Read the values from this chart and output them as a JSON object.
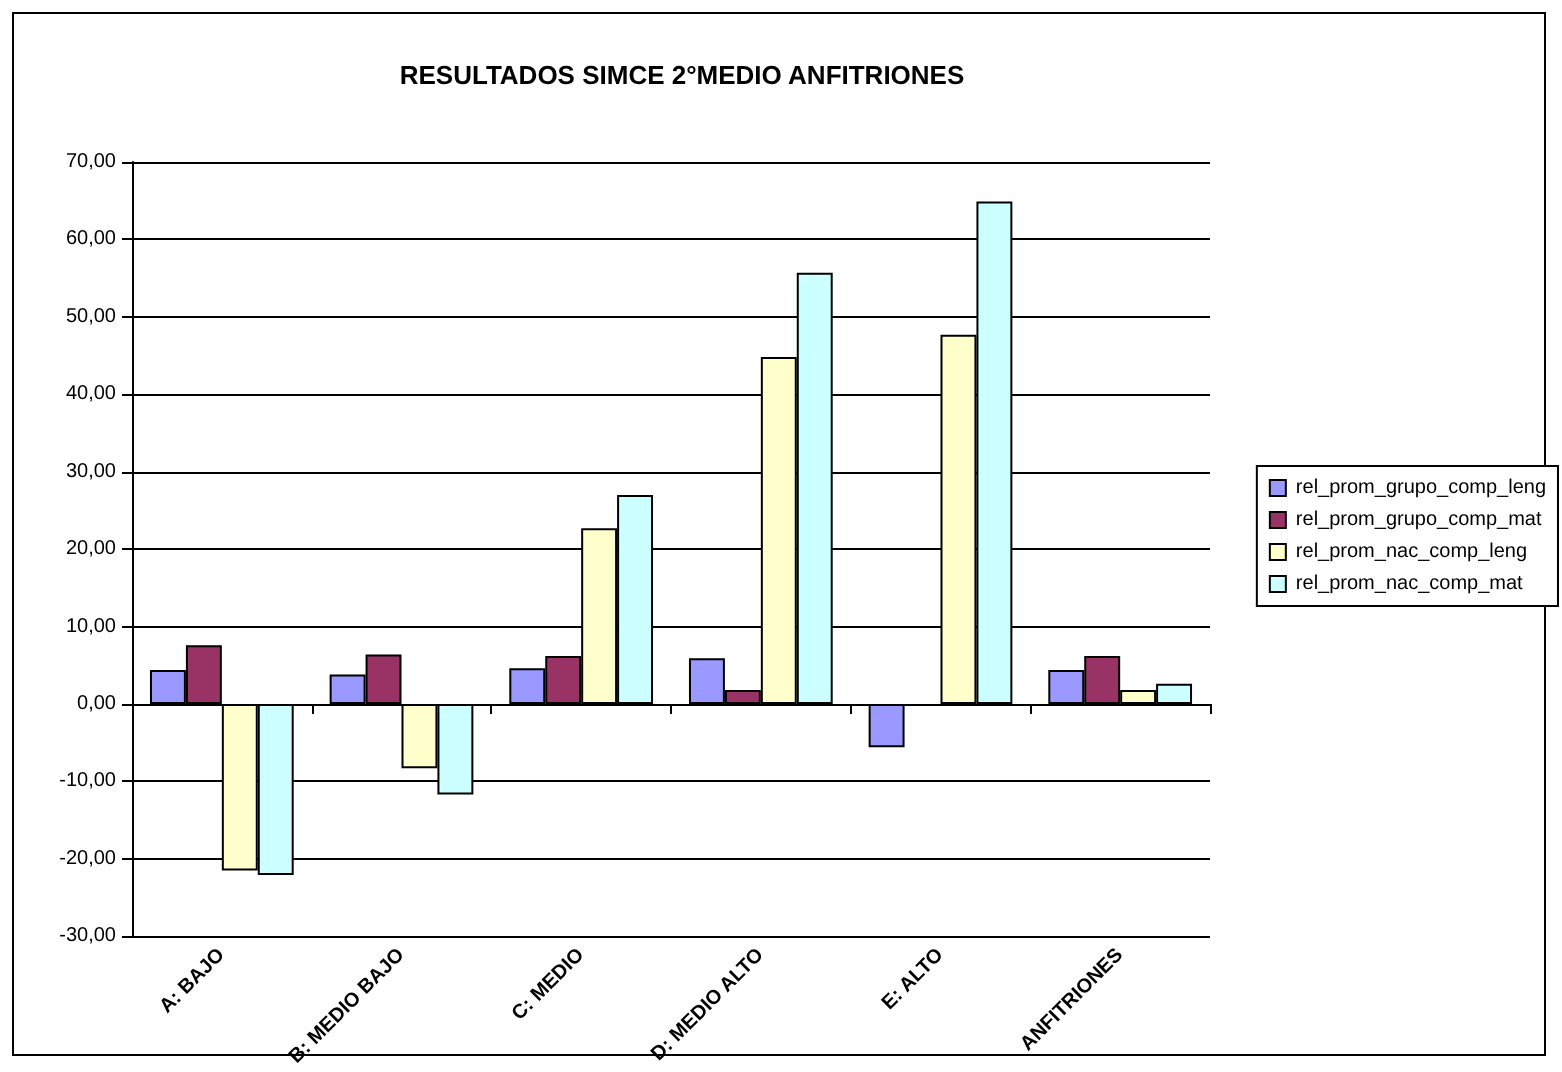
{
  "chart_data": {
    "type": "bar",
    "title": "RESULTADOS SIMCE 2°MEDIO ANFITRIONES",
    "categories": [
      "A: BAJO",
      "B: MEDIO BAJO",
      "C: MEDIO",
      "D: MEDIO ALTO",
      "E: ALTO",
      "ANFITRIONES"
    ],
    "series": [
      {
        "name": "rel_prom_grupo_comp_leng",
        "color": "#9999ff",
        "values": [
          4.4,
          3.8,
          4.6,
          5.9,
          -5.6,
          4.4
        ]
      },
      {
        "name": "rel_prom_grupo_comp_mat",
        "color": "#993366",
        "values": [
          7.6,
          6.4,
          6.2,
          1.8,
          null,
          6.2
        ]
      },
      {
        "name": "rel_prom_nac_comp_leng",
        "color": "#ffffcc",
        "values": [
          -21.5,
          -8.3,
          22.7,
          44.8,
          47.7,
          1.8
        ]
      },
      {
        "name": "rel_prom_nac_comp_mat",
        "color": "#ccffff",
        "values": [
          -22.1,
          -11.7,
          27.0,
          55.7,
          64.9,
          2.6
        ]
      }
    ],
    "ylim": [
      -30,
      70
    ],
    "yticks": [
      {
        "value": -30,
        "label": "-30,00"
      },
      {
        "value": -20,
        "label": "-20,00"
      },
      {
        "value": -10,
        "label": "-10,00"
      },
      {
        "value": 0,
        "label": "0,00"
      },
      {
        "value": 10,
        "label": "10,00"
      },
      {
        "value": 20,
        "label": "20,00"
      },
      {
        "value": 30,
        "label": "30,00"
      },
      {
        "value": 40,
        "label": "40,00"
      },
      {
        "value": 50,
        "label": "50,00"
      },
      {
        "value": 60,
        "label": "60,00"
      },
      {
        "value": 70,
        "label": "70,00"
      }
    ],
    "grid": "y",
    "legend": "right"
  }
}
